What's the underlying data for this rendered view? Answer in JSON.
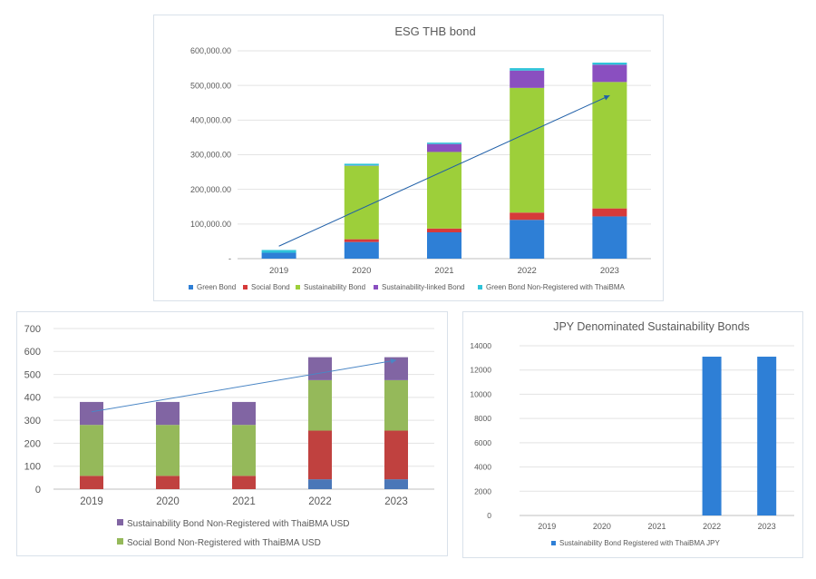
{
  "chart_data": [
    {
      "type": "bar",
      "stacked": true,
      "title": "ESG THB bond",
      "categories": [
        "2019",
        "2020",
        "2021",
        "2022",
        "2023"
      ],
      "ylim": [
        0,
        600000
      ],
      "yticks": [
        0,
        100000,
        200000,
        300000,
        400000,
        500000,
        600000
      ],
      "ytick_labels": [
        "-",
        "100,000.00",
        "200,000.00",
        "300,000.00",
        "400,000.00",
        "500,000.00",
        "600,000.00"
      ],
      "grid": true,
      "legend_position": "bottom",
      "series": [
        {
          "name": "Green Bond",
          "color": "#2e7fd6",
          "values": [
            17000,
            48000,
            76000,
            112000,
            122000
          ]
        },
        {
          "name": "Social Bond",
          "color": "#d63a3a",
          "values": [
            0,
            8000,
            11000,
            21000,
            23000
          ]
        },
        {
          "name": "Sustainability Bond",
          "color": "#9dcf3a",
          "values": [
            0,
            212000,
            221000,
            360000,
            365000
          ]
        },
        {
          "name": "Sustainability-linked Bond",
          "color": "#8a4fc0",
          "values": [
            0,
            1000,
            23000,
            50000,
            50000
          ]
        },
        {
          "name": "Green Bond Non-Registered with ThaiBMA",
          "color": "#2fc3d9",
          "values": [
            8000,
            5000,
            4000,
            7000,
            6000
          ]
        }
      ],
      "trend_arrow": {
        "from": [
          "2019",
          36000
        ],
        "to": [
          "2023",
          471000
        ],
        "color": "#1f5fa8"
      }
    },
    {
      "type": "bar",
      "stacked": true,
      "title": "",
      "categories": [
        "2019",
        "2020",
        "2021",
        "2022",
        "2023"
      ],
      "ylim": [
        0,
        700
      ],
      "yticks": [
        0,
        100,
        200,
        300,
        400,
        500,
        600,
        700
      ],
      "ytick_labels": [
        "0",
        "100",
        "200",
        "300",
        "400",
        "500",
        "600",
        "700"
      ],
      "grid": true,
      "legend_position": "bottom",
      "series": [
        {
          "color": "#4a77b8",
          "values": [
            0,
            0,
            0,
            43,
            43
          ]
        },
        {
          "color": "#c0413f",
          "values": [
            58,
            58,
            58,
            212,
            212
          ]
        },
        {
          "name": "Social Bond Non-Registered with ThaiBMA USD",
          "color": "#95b95a",
          "values": [
            222,
            222,
            222,
            220,
            220
          ]
        },
        {
          "name": "Sustainability Bond Non-Registered with ThaiBMA USD",
          "color": "#8165a3",
          "values": [
            100,
            100,
            100,
            100,
            100
          ]
        }
      ],
      "legend_order": [
        3,
        2
      ],
      "trend_arrow": {
        "from": [
          "2019",
          337
        ],
        "to": [
          "2023",
          562
        ],
        "color": "#4a86c5"
      }
    },
    {
      "type": "bar",
      "title": "JPY Denominated Sustainability Bonds",
      "categories": [
        "2019",
        "2020",
        "2021",
        "2022",
        "2023"
      ],
      "ylim": [
        0,
        14000
      ],
      "yticks": [
        0,
        2000,
        4000,
        6000,
        8000,
        10000,
        12000,
        14000
      ],
      "ytick_labels": [
        "0",
        "2000",
        "4000",
        "6000",
        "8000",
        "10000",
        "12000",
        "14000"
      ],
      "grid": true,
      "legend_position": "bottom",
      "series": [
        {
          "name": "Sustainability Bond Registered with ThaiBMA JPY",
          "color": "#2e7fd6",
          "values": [
            0,
            0,
            0,
            13100,
            13100
          ]
        }
      ]
    }
  ]
}
